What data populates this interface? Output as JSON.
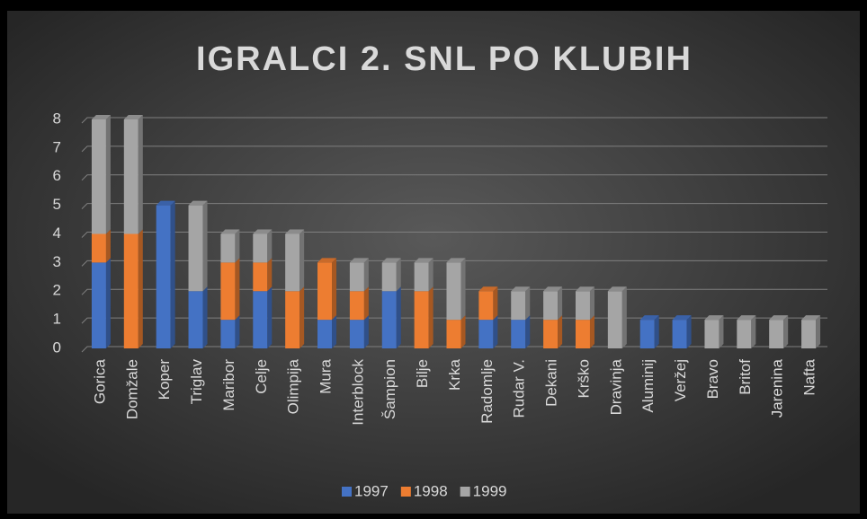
{
  "chart_data": {
    "type": "bar",
    "stacked": true,
    "title": "IGRALCI 2. SNL PO KLUBIH",
    "categories": [
      "Gorica",
      "Domžale",
      "Koper",
      "Triglav",
      "Maribor",
      "Celje",
      "Olimpija",
      "Mura",
      "Interblock",
      "Šampion",
      "Bilje",
      "Krka",
      "Radomlje",
      "Rudar V.",
      "Dekani",
      "Krško",
      "Dravinja",
      "Aluminij",
      "Veržej",
      "Bravo",
      "Britof",
      "Jarenina",
      "Nafta"
    ],
    "series": [
      {
        "name": "1997",
        "color": "#4472c4",
        "values": [
          3,
          0,
          5,
          2,
          1,
          2,
          0,
          1,
          1,
          2,
          0,
          0,
          1,
          1,
          0,
          0,
          0,
          1,
          1,
          0,
          0,
          0,
          0
        ]
      },
      {
        "name": "1998",
        "color": "#ed7d31",
        "values": [
          1,
          4,
          0,
          0,
          2,
          1,
          2,
          2,
          1,
          0,
          2,
          1,
          1,
          0,
          1,
          1,
          0,
          0,
          0,
          0,
          0,
          0,
          0
        ]
      },
      {
        "name": "1999",
        "color": "#a5a5a5",
        "values": [
          4,
          4,
          0,
          3,
          1,
          1,
          2,
          0,
          1,
          1,
          1,
          2,
          0,
          1,
          1,
          1,
          2,
          0,
          0,
          1,
          1,
          1,
          1
        ]
      }
    ],
    "ylim": [
      0,
      8
    ],
    "yticks": [
      0,
      1,
      2,
      3,
      4,
      5,
      6,
      7,
      8
    ],
    "grid": true,
    "legend": "bottom"
  }
}
